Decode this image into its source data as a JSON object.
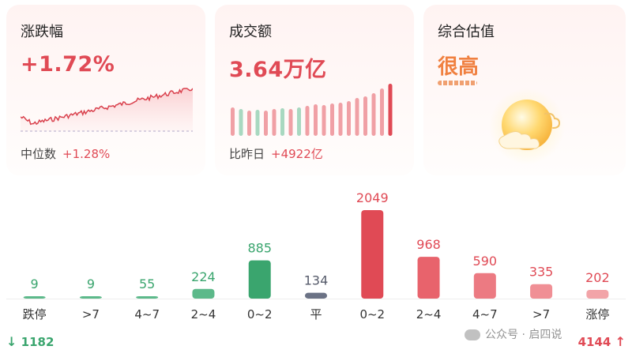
{
  "cards": {
    "change": {
      "title": "涨跌幅",
      "value": "+1.72%",
      "sub_label": "中位数",
      "sub_value": "+1.28%"
    },
    "turnover": {
      "title": "成交额",
      "value": "3.64万亿",
      "sub_label": "比昨日",
      "sub_value": "+4922亿"
    },
    "valuation": {
      "title": "综合估值",
      "value": "很高"
    }
  },
  "distribution": {
    "categories": [
      "跌停",
      ">7",
      "4~7",
      "2~4",
      "0~2",
      "平",
      "0~2",
      "2~4",
      "4~7",
      ">7",
      "涨停"
    ],
    "values": [
      9,
      9,
      55,
      224,
      885,
      134,
      2049,
      968,
      590,
      335,
      202
    ],
    "colors": [
      "#5cb98a",
      "#5cb98a",
      "#5cb98a",
      "#5cb98a",
      "#3aa56e",
      "#6b7285",
      "#e04a55",
      "#e8636c",
      "#ec7a82",
      "#f08f95",
      "#f2a4a8"
    ],
    "label_colors": [
      "#3aa56e",
      "#3aa56e",
      "#3aa56e",
      "#3aa56e",
      "#3aa56e",
      "#555a6a",
      "#e04a55",
      "#e04a55",
      "#e04a55",
      "#e04a55",
      "#e04a55"
    ]
  },
  "summary": {
    "down": "1182",
    "up": "4144",
    "down_arrow": "↓",
    "up_arrow": "↑"
  },
  "watermark": "公众号 · 启四说",
  "colors": {
    "red": "#e04a55",
    "green": "#3aa56e",
    "gray": "#6b7285",
    "orange": "#f08040"
  }
}
